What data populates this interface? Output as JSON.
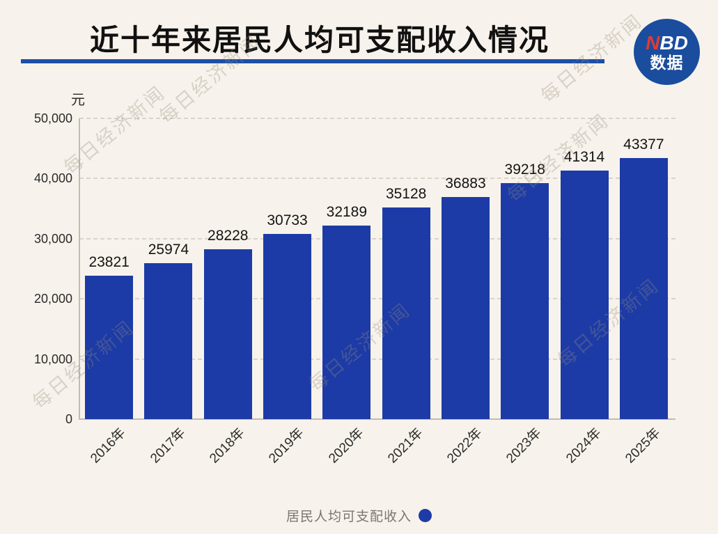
{
  "header": {
    "title": "近十年来居民人均可支配收入情况",
    "logo": {
      "red_part": "N",
      "white_part": "BD",
      "subtitle": "数据"
    }
  },
  "watermark": {
    "text": "每日经济新闻"
  },
  "chart_data": {
    "type": "bar",
    "title": "近十年来居民人均可支配收入情况",
    "unit_label": "元",
    "categories": [
      "2016年",
      "2017年",
      "2018年",
      "2019年",
      "2020年",
      "2021年",
      "2022年",
      "2023年",
      "2024年",
      "2025年"
    ],
    "series": [
      {
        "name": "居民人均可支配收入",
        "values": [
          23821,
          25974,
          28228,
          30733,
          32189,
          35128,
          36883,
          39218,
          41314,
          43377
        ]
      }
    ],
    "ylim": [
      0,
      50000
    ],
    "ytick_step": 10000,
    "ytick_labels": [
      "0",
      "10,000",
      "20,000",
      "30,000",
      "40,000",
      "50,000"
    ],
    "grid": true,
    "grid_style": "dashed",
    "legend_position": "bottom",
    "bar_color": "#1d3ba6"
  },
  "legend": {
    "label": "居民人均可支配收入",
    "dot_color": "#1d3ba6"
  },
  "colors": {
    "background": "#f7f2eb",
    "bar": "#1d3ba6",
    "accent_rule": "#1d4fa6",
    "logo_bg": "#1a4d9e",
    "logo_red": "#e23b32",
    "grid": "#d9d4ca",
    "axis": "#c1bcb2",
    "legend_text": "#7b766e"
  }
}
